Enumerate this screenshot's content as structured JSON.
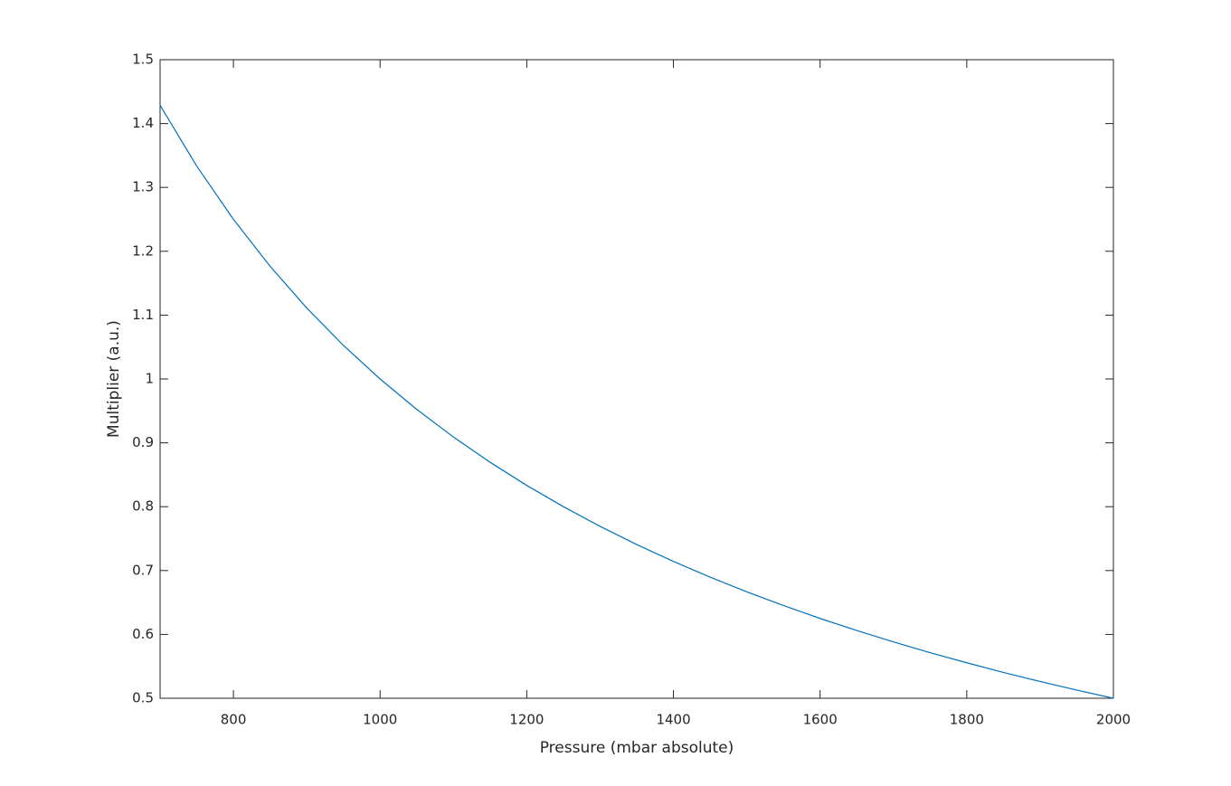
{
  "chart_data": {
    "type": "line",
    "x_label": "Pressure (mbar absolute)",
    "y_label": "Multiplier (a.u.)",
    "x": [
      700,
      750,
      800,
      850,
      900,
      950,
      1000,
      1050,
      1100,
      1150,
      1200,
      1250,
      1300,
      1350,
      1400,
      1450,
      1500,
      1550,
      1600,
      1650,
      1700,
      1750,
      1800,
      1850,
      1900,
      1950,
      2000
    ],
    "series": [
      {
        "color": "#0072bd",
        "values": [
          1.4286,
          1.3333,
          1.25,
          1.1765,
          1.1111,
          1.0526,
          1,
          0.9524,
          0.9091,
          0.8696,
          0.8333,
          0.8,
          0.7692,
          0.7407,
          0.7143,
          0.6897,
          0.6667,
          0.6452,
          0.625,
          0.6061,
          0.5882,
          0.5714,
          0.5556,
          0.5405,
          0.5263,
          0.5128,
          0.5
        ]
      }
    ],
    "xlim": [
      700,
      2000
    ],
    "ylim": [
      0.5,
      1.5
    ],
    "xticks": [
      800,
      1000,
      1200,
      1400,
      1600,
      1800,
      2000
    ],
    "yticks": [
      0.5,
      0.6,
      0.7,
      0.8,
      0.9,
      1,
      1.1,
      1.2,
      1.3,
      1.4,
      1.5
    ],
    "grid": false
  }
}
